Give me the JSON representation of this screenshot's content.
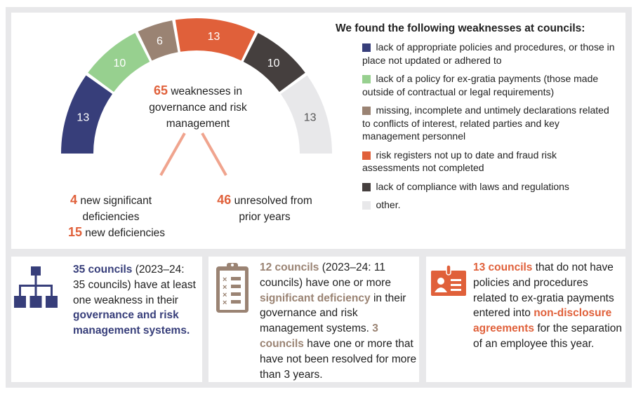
{
  "chart_data": {
    "type": "gauge",
    "values": [
      13,
      10,
      6,
      13,
      10,
      13
    ],
    "colors": [
      "#373e7a",
      "#97d08f",
      "#9a8373",
      "#e0603a",
      "#453f3e",
      "#e8e8ea"
    ],
    "label_colors": [
      "#ffffff",
      "#ffffff",
      "#ffffff",
      "#ffffff",
      "#ffffff",
      "#555555"
    ],
    "total": "65",
    "total_text": "weaknesses in governance and risk management",
    "breakdown": [
      {
        "value": "4",
        "text": "new significant deficiencies"
      },
      {
        "value": "15",
        "text": "new deficiencies"
      },
      {
        "value": "46",
        "text": "unresolved from prior years"
      }
    ],
    "legend_title": "We found the following weaknesses at councils:",
    "legend": [
      "lack of appropriate policies and procedures, or those in place not updated or adhered to",
      "lack of a policy for ex-gratia payments (those made outside of contractual or legal requirements)",
      "missing, incomplete and untimely declarations related to conflicts of interest, related parties and key management personnel",
      "risk registers not up to date and fraud risk assessments not completed",
      "lack of compliance with laws and regulations",
      "other."
    ]
  },
  "cards": [
    {
      "h1": "35 councils",
      "t1": " (2023–24: 35 councils) have at least one weakness in their ",
      "h2": "governance and risk management systems."
    },
    {
      "h1": "12 councils",
      "t1": " (2023–24: 11 councils) have one or more ",
      "h2": "significant deficiency",
      "t2": " in their governance and risk management systems. ",
      "h3": "3 councils",
      "t3": " have one or more that have not been resolved for more than 3 years."
    },
    {
      "h1": "13 councils",
      "t1": " that do not have policies and procedures related to ex-gratia payments entered into ",
      "h2": "non-disclosure agreements",
      "t2": " for the separation of an employee this year."
    }
  ]
}
